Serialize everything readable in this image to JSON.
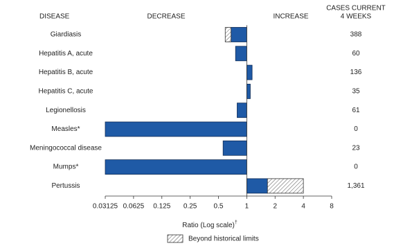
{
  "chart_data": {
    "type": "bar",
    "orientation": "horizontal",
    "log_scale": true,
    "headers": {
      "disease": "DISEASE",
      "decrease": "DECREASE",
      "increase": "INCREASE",
      "cases": [
        "CASES CURRENT",
        "4 WEEKS"
      ]
    },
    "categories": [
      "Giardiasis",
      "Hepatitis A, acute",
      "Hepatitis B, acute",
      "Hepatitis C, acute",
      "Legionellosis",
      "Measles*",
      "Meningococcal disease",
      "Mumps*",
      "Pertussis"
    ],
    "values": [
      0.59,
      0.76,
      1.14,
      1.09,
      0.79,
      0.03125,
      0.56,
      0.03125,
      4.0
    ],
    "historical_limit": [
      0.68,
      null,
      null,
      null,
      null,
      null,
      null,
      null,
      1.66
    ],
    "cases": [
      "388",
      "60",
      "136",
      "35",
      "61",
      "0",
      "23",
      "0",
      "1,361"
    ],
    "color": "#1f5aa6",
    "xlim": [
      0.03125,
      8
    ],
    "xticks": [
      0.03125,
      0.0625,
      0.125,
      0.25,
      0.5,
      1,
      2,
      4,
      8
    ],
    "xlabel": "Ratio (Log scale)",
    "xlabel_note": "†",
    "legend": "Beyond historical limits"
  }
}
